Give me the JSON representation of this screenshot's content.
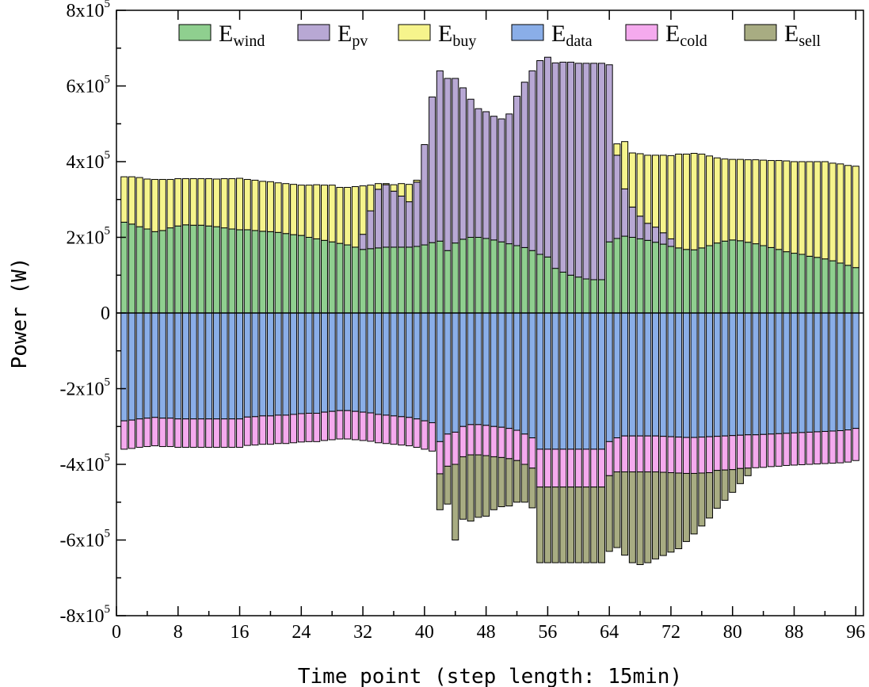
{
  "chart_data": {
    "type": "bar",
    "stacked": true,
    "xlabel": "Time point (step length: 15min)",
    "ylabel": "Power (W)",
    "ylim": [
      -800000,
      800000
    ],
    "xlim": [
      0,
      97
    ],
    "x_ticks": [
      0,
      8,
      16,
      24,
      32,
      40,
      48,
      56,
      64,
      72,
      80,
      88,
      96
    ],
    "x_tick_labels": [
      "0",
      "8",
      "16",
      "24",
      "32",
      "40",
      "48",
      "56",
      "64",
      "72",
      "80",
      "88",
      "96"
    ],
    "y_tick_labels": [
      {
        "value": 800000,
        "mantissa": "8x10",
        "exp": "5"
      },
      {
        "value": 600000,
        "mantissa": "6x10",
        "exp": "5"
      },
      {
        "value": 400000,
        "mantissa": "4x10",
        "exp": "5"
      },
      {
        "value": 200000,
        "mantissa": "2x10",
        "exp": "5"
      },
      {
        "value": 0,
        "mantissa": "0",
        "exp": ""
      },
      {
        "value": -200000,
        "mantissa": "-2x10",
        "exp": "5"
      },
      {
        "value": -400000,
        "mantissa": "-4x10",
        "exp": "5"
      },
      {
        "value": -600000,
        "mantissa": "-6x10",
        "exp": "5"
      },
      {
        "value": -800000,
        "mantissa": "-8x10",
        "exp": "5"
      }
    ],
    "legend_placement": "top",
    "x": [
      1,
      2,
      3,
      4,
      5,
      6,
      7,
      8,
      9,
      10,
      11,
      12,
      13,
      14,
      15,
      16,
      17,
      18,
      19,
      20,
      21,
      22,
      23,
      24,
      25,
      26,
      27,
      28,
      29,
      30,
      31,
      32,
      33,
      34,
      35,
      36,
      37,
      38,
      39,
      40,
      41,
      42,
      43,
      44,
      45,
      46,
      47,
      48,
      49,
      50,
      51,
      52,
      53,
      54,
      55,
      56,
      57,
      58,
      59,
      60,
      61,
      62,
      63,
      64,
      65,
      66,
      67,
      68,
      69,
      70,
      71,
      72,
      73,
      74,
      75,
      76,
      77,
      78,
      79,
      80,
      81,
      82,
      83,
      84,
      85,
      86,
      87,
      88,
      89,
      90,
      91,
      92,
      93,
      94,
      95,
      96
    ],
    "series": [
      {
        "name": "E",
        "sub": "wind",
        "color": "#8fcf8f",
        "side": "positive",
        "values": [
          240000,
          235000,
          228000,
          222000,
          215000,
          218000,
          225000,
          230000,
          233000,
          232000,
          232000,
          230000,
          228000,
          225000,
          222000,
          220000,
          220000,
          218000,
          216000,
          215000,
          213000,
          210000,
          207000,
          205000,
          200000,
          196000,
          192000,
          188000,
          184000,
          180000,
          174000,
          168000,
          170000,
          172000,
          174000,
          174000,
          174000,
          174000,
          176000,
          180000,
          186000,
          190000,
          165000,
          185000,
          195000,
          200000,
          200000,
          197000,
          193000,
          188000,
          183000,
          178000,
          173000,
          165000,
          155000,
          148000,
          118000,
          108000,
          100000,
          95000,
          90000,
          88000,
          88000,
          188000,
          197000,
          203000,
          200000,
          196000,
          192000,
          187000,
          182000,
          176000,
          172000,
          168000,
          167000,
          172000,
          178000,
          185000,
          190000,
          193000,
          191000,
          187000,
          183000,
          178000,
          173000,
          168000,
          162000,
          158000,
          155000,
          150000,
          147000,
          143000,
          138000,
          132000,
          126000,
          120000
        ]
      },
      {
        "name": "E",
        "sub": "pv",
        "color": "#b8a8d4",
        "side": "positive",
        "values": [
          0,
          0,
          0,
          0,
          0,
          0,
          0,
          0,
          0,
          0,
          0,
          0,
          0,
          0,
          0,
          0,
          0,
          0,
          0,
          0,
          0,
          0,
          0,
          0,
          0,
          0,
          0,
          0,
          0,
          0,
          0,
          40000,
          100000,
          155000,
          165000,
          148000,
          135000,
          120000,
          170000,
          265000,
          385000,
          450000,
          455000,
          435000,
          400000,
          365000,
          340000,
          335000,
          327000,
          325000,
          343000,
          395000,
          437000,
          475000,
          512000,
          528000,
          543000,
          555000,
          563000,
          565000,
          570000,
          572000,
          572000,
          468000,
          220000,
          125000,
          80000,
          60000,
          45000,
          40000,
          30000,
          20000,
          0,
          0,
          0,
          0,
          0,
          0,
          0,
          0,
          0,
          0,
          0,
          0,
          0,
          0,
          0,
          0,
          0,
          0,
          0,
          0,
          0,
          0,
          0,
          0
        ]
      },
      {
        "name": "E",
        "sub": "buy",
        "color": "#f6f48c",
        "side": "positive",
        "values": [
          120000,
          125000,
          130000,
          132000,
          138000,
          135000,
          128000,
          125000,
          122000,
          123000,
          123000,
          125000,
          126000,
          130000,
          133000,
          136000,
          133000,
          133000,
          132000,
          132000,
          131000,
          132000,
          133000,
          133000,
          138000,
          143000,
          146000,
          150000,
          148000,
          152000,
          160000,
          128000,
          68000,
          15000,
          3000,
          17000,
          33000,
          46000,
          5000,
          0,
          0,
          0,
          0,
          0,
          0,
          0,
          0,
          0,
          0,
          0,
          0,
          0,
          0,
          0,
          0,
          0,
          0,
          0,
          0,
          0,
          0,
          0,
          0,
          0,
          30000,
          125000,
          143000,
          165000,
          180000,
          190000,
          205000,
          220000,
          248000,
          252000,
          255000,
          248000,
          237000,
          225000,
          217000,
          213000,
          215000,
          218000,
          222000,
          226000,
          230000,
          235000,
          240000,
          242000,
          245000,
          250000,
          253000,
          257000,
          258000,
          262000,
          264000,
          268000
        ]
      },
      {
        "name": "E",
        "sub": "data",
        "color": "#8aaee8",
        "side": "negative",
        "values": [
          -285000,
          -283000,
          -280000,
          -278000,
          -276000,
          -278000,
          -278000,
          -280000,
          -280000,
          -280000,
          -280000,
          -280000,
          -280000,
          -280000,
          -280000,
          -280000,
          -275000,
          -274000,
          -272000,
          -272000,
          -270000,
          -270000,
          -268000,
          -266000,
          -265000,
          -265000,
          -262000,
          -260000,
          -258000,
          -258000,
          -260000,
          -262000,
          -264000,
          -268000,
          -270000,
          -272000,
          -274000,
          -276000,
          -280000,
          -285000,
          -290000,
          -340000,
          -320000,
          -315000,
          -300000,
          -295000,
          -295000,
          -297000,
          -300000,
          -302000,
          -305000,
          -310000,
          -320000,
          -330000,
          -360000,
          -360000,
          -360000,
          -360000,
          -360000,
          -360000,
          -360000,
          -360000,
          -360000,
          -340000,
          -330000,
          -325000,
          -325000,
          -325000,
          -325000,
          -325000,
          -326000,
          -327000,
          -328000,
          -329000,
          -329000,
          -328000,
          -327000,
          -326000,
          -325000,
          -324000,
          -323000,
          -322000,
          -322000,
          -321000,
          -320000,
          -319000,
          -318000,
          -317000,
          -316000,
          -315000,
          -314000,
          -313000,
          -312000,
          -311000,
          -309000,
          -305000
        ]
      },
      {
        "name": "E",
        "sub": "cold",
        "color": "#f5aaee",
        "side": "negative",
        "values": [
          -75000,
          -75000,
          -75000,
          -75000,
          -75000,
          -75000,
          -75000,
          -75000,
          -75000,
          -75000,
          -75000,
          -75000,
          -75000,
          -75000,
          -75000,
          -75000,
          -75000,
          -75000,
          -75000,
          -75000,
          -75000,
          -75000,
          -75000,
          -75000,
          -75000,
          -75000,
          -75000,
          -75000,
          -75000,
          -75000,
          -75000,
          -75000,
          -75000,
          -75000,
          -75000,
          -75000,
          -75000,
          -75000,
          -75000,
          -75000,
          -75000,
          -85000,
          -85000,
          -85000,
          -80000,
          -80000,
          -80000,
          -80000,
          -80000,
          -80000,
          -80000,
          -80000,
          -80000,
          -80000,
          -100000,
          -100000,
          -100000,
          -100000,
          -100000,
          -100000,
          -100000,
          -100000,
          -100000,
          -90000,
          -90000,
          -95000,
          -95000,
          -95000,
          -95000,
          -95000,
          -95000,
          -95000,
          -95000,
          -95000,
          -95000,
          -95000,
          -95000,
          -90000,
          -90000,
          -90000,
          -88000,
          -88000,
          -87000,
          -87000,
          -86000,
          -86000,
          -85000,
          -85000,
          -85000,
          -85000,
          -85000,
          -85000,
          -85000,
          -85000,
          -85000,
          -85000
        ]
      },
      {
        "name": "E",
        "sub": "sell",
        "color": "#a8ac82",
        "side": "negative",
        "values": [
          0,
          0,
          0,
          0,
          0,
          0,
          0,
          0,
          0,
          0,
          0,
          0,
          0,
          0,
          0,
          0,
          0,
          0,
          0,
          0,
          0,
          0,
          0,
          0,
          0,
          0,
          0,
          0,
          0,
          0,
          0,
          0,
          0,
          0,
          0,
          0,
          0,
          0,
          0,
          0,
          0,
          -95000,
          -100000,
          -200000,
          -165000,
          -175000,
          -165000,
          -160000,
          -140000,
          -130000,
          -125000,
          -110000,
          -100000,
          -105000,
          -200000,
          -200000,
          -200000,
          -200000,
          -200000,
          -200000,
          -200000,
          -200000,
          -200000,
          -200000,
          -200000,
          -220000,
          -240000,
          -245000,
          -240000,
          -230000,
          -220000,
          -210000,
          -200000,
          -180000,
          -160000,
          -140000,
          -120000,
          -100000,
          -80000,
          -60000,
          -40000,
          -20000,
          0,
          0,
          0,
          0,
          0,
          0,
          0,
          0,
          0,
          0,
          0,
          0,
          0,
          0
        ]
      }
    ]
  }
}
